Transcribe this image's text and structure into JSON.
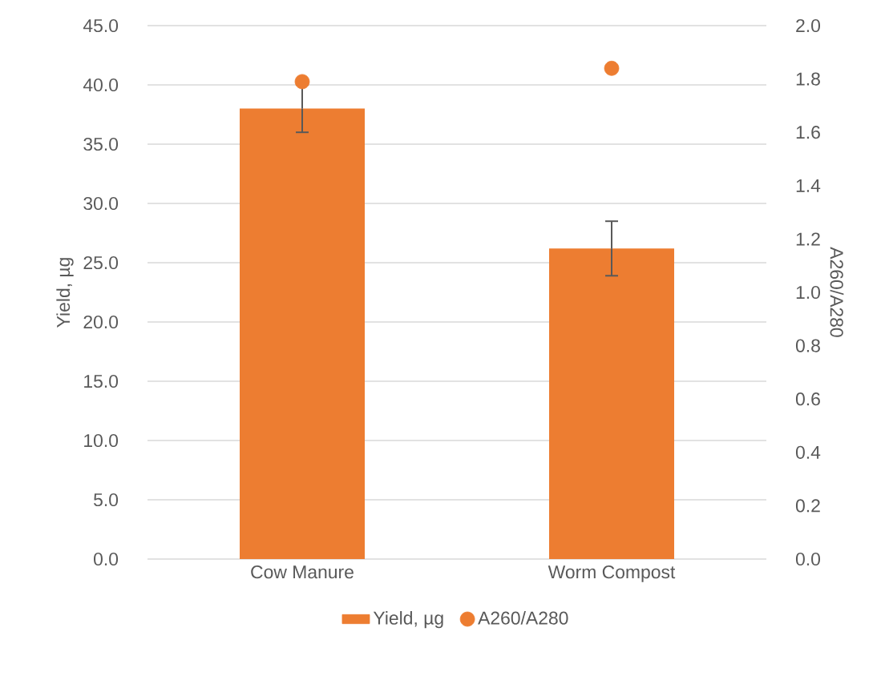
{
  "chart_data": {
    "type": "bar",
    "categories": [
      "Cow Manure",
      "Worm Compost"
    ],
    "ylabel": "Yield, µg",
    "y2label": "A260/A280",
    "series": [
      {
        "name": "Yield, µg",
        "color": "#ed7d31",
        "values": [
          38.0,
          26.2
        ],
        "errors": [
          2.0,
          2.3
        ]
      },
      {
        "name": "A260/A280",
        "type": "scatter",
        "axis": "y2",
        "color": "#ed7d31",
        "x": [
          "Cow Manure",
          "Worm Compost"
        ],
        "values": [
          1.79,
          1.84
        ]
      }
    ],
    "ylim": [
      0,
      45
    ],
    "yticks": [
      {
        "value": 0,
        "label": "0.0"
      },
      {
        "value": 5,
        "label": "5.0"
      },
      {
        "value": 10,
        "label": "10.0"
      },
      {
        "value": 15,
        "label": "15.0"
      },
      {
        "value": 20,
        "label": "20.0"
      },
      {
        "value": 25,
        "label": "25.0"
      },
      {
        "value": 30,
        "label": "30.0"
      },
      {
        "value": 35,
        "label": "35.0"
      },
      {
        "value": 40,
        "label": "40.0"
      },
      {
        "value": 45,
        "label": "45.0"
      }
    ],
    "y2lim": [
      0,
      2
    ],
    "y2ticks": [
      {
        "value": 0,
        "label": "0.0"
      },
      {
        "value": 0.2,
        "label": "0.2"
      },
      {
        "value": 0.4,
        "label": "0.4"
      },
      {
        "value": 0.6,
        "label": "0.6"
      },
      {
        "value": 0.8,
        "label": "0.8"
      },
      {
        "value": 1,
        "label": "1.0"
      },
      {
        "value": 1.2,
        "label": "1.2"
      },
      {
        "value": 1.4,
        "label": "1.4"
      },
      {
        "value": 1.6,
        "label": "1.6"
      },
      {
        "value": 1.8,
        "label": "1.8"
      },
      {
        "value": 2,
        "label": "2.0"
      }
    ],
    "grid": "y",
    "legend": "bottom"
  }
}
